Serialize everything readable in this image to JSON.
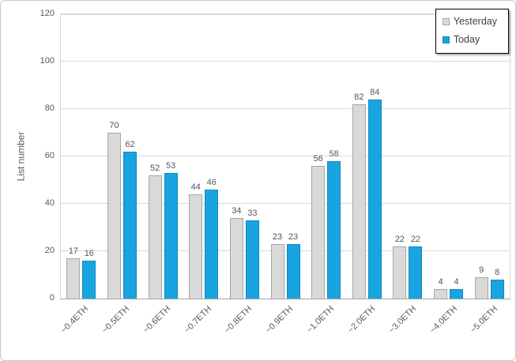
{
  "chart_data": {
    "type": "bar",
    "title": "",
    "ylabel": "List number",
    "xlabel": "",
    "ylim": [
      0,
      120
    ],
    "ytick_step": 20,
    "yticks": [
      0,
      20,
      40,
      60,
      80,
      100,
      120
    ],
    "grid": true,
    "legend_position": "top-right",
    "categories": [
      "~0.4ETH",
      "~0.5ETH",
      "~0.6ETH",
      "~0.7ETH",
      "~0.8ETH",
      "~0.9ETH",
      "~1.0ETH",
      "~2.0ETH",
      "~3.0ETH",
      "~4.0ETH",
      "~5.0ETH"
    ],
    "series": [
      {
        "name": "Yesterday",
        "values": [
          17,
          70,
          52,
          44,
          34,
          23,
          56,
          82,
          22,
          4,
          9
        ],
        "fill": "#d9d9d9",
        "border": "#a6a6a6",
        "label_color": "#44546a"
      },
      {
        "name": "Today",
        "values": [
          16,
          62,
          53,
          46,
          33,
          23,
          58,
          84,
          22,
          4,
          8
        ],
        "fill": "#18a4e0",
        "border": "#1389bc",
        "label_color": "#595959"
      }
    ],
    "colors": {
      "gridline": "#d9d9d9",
      "axis_line": "#a6a6a6",
      "tick_text": "#595959",
      "legend_border": "#000000",
      "background": "#ffffff"
    }
  }
}
